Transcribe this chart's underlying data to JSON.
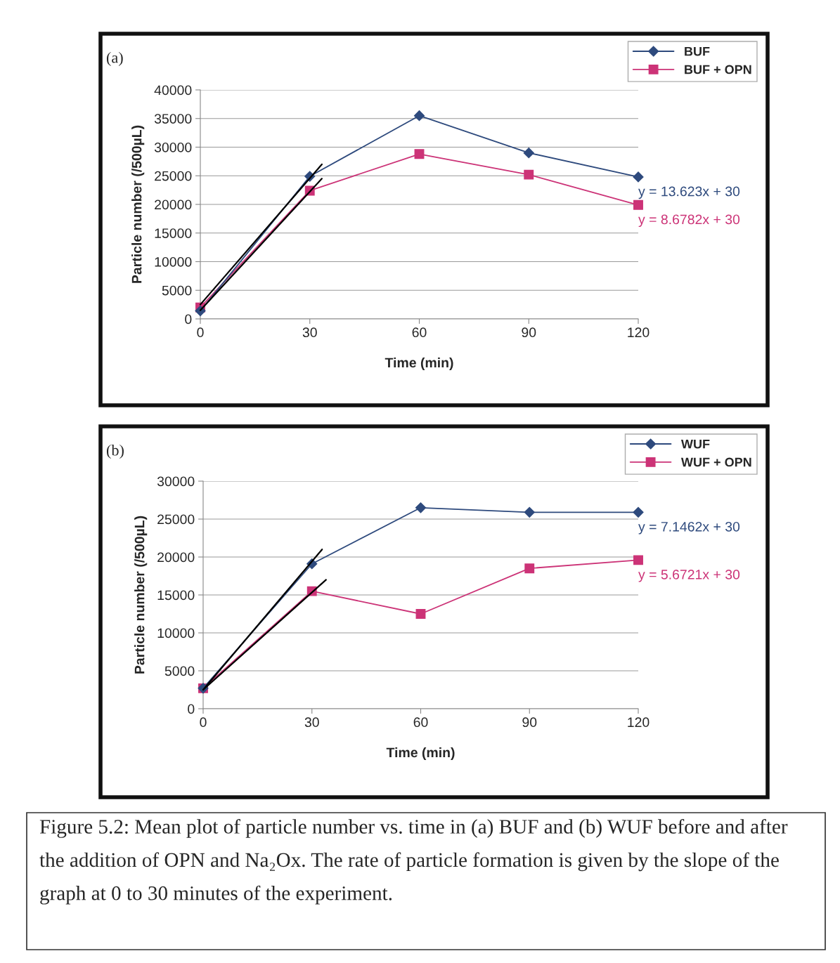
{
  "chart_data": [
    {
      "type": "line",
      "title": "(a)",
      "xlabel": "Time (min)",
      "ylabel": "Particle number (/500µL)",
      "x": [
        0,
        30,
        60,
        90,
        120
      ],
      "xlim": [
        0,
        120
      ],
      "xticks": [
        0,
        30,
        60,
        90,
        120
      ],
      "ylim": [
        0,
        40000
      ],
      "yticks": [
        0,
        5000,
        10000,
        15000,
        20000,
        25000,
        30000,
        35000,
        40000
      ],
      "grid": "y",
      "legend": "top right",
      "series": [
        {
          "name": "BUF",
          "color": "#2e4a7d",
          "marker": "diamond",
          "values": [
            1400,
            24900,
            35500,
            29000,
            24800
          ]
        },
        {
          "name": "BUF + OPN",
          "color": "#cc3377",
          "marker": "square",
          "values": [
            2000,
            22400,
            28800,
            25200,
            19900
          ]
        },
        {
          "type": "line",
          "color": "#000000",
          "marker": "none",
          "x": [
            0,
            33.3
          ],
          "values": [
            2500,
            27000
          ]
        },
        {
          "type": "line",
          "color": "#000000",
          "marker": "none",
          "x": [
            0,
            33.3
          ],
          "values": [
            1500,
            24500
          ]
        }
      ],
      "annotations": [
        "y = 13.623x + 30",
        "y = 8.6782x + 30"
      ]
    },
    {
      "type": "line",
      "title": "(b)",
      "xlabel": "Time (min)",
      "ylabel": "Particle number (/500µL)",
      "x": [
        0,
        30,
        60,
        90,
        120
      ],
      "xlim": [
        0,
        120
      ],
      "xticks": [
        0,
        30,
        60,
        90,
        120
      ],
      "ylim": [
        0,
        30000
      ],
      "yticks": [
        0,
        5000,
        10000,
        15000,
        20000,
        25000,
        30000
      ],
      "grid": "y",
      "legend": "top right",
      "series": [
        {
          "name": "WUF",
          "color": "#2e4a7d",
          "marker": "diamond",
          "values": [
            2700,
            19100,
            26500,
            25900,
            25900
          ]
        },
        {
          "name": "WUF + OPN",
          "color": "#cc3377",
          "marker": "square",
          "values": [
            2700,
            15500,
            12500,
            18500,
            19600
          ]
        },
        {
          "type": "line",
          "color": "#000000",
          "marker": "none",
          "x": [
            0,
            32.8
          ],
          "values": [
            2500,
            21000
          ]
        },
        {
          "type": "line",
          "color": "#000000",
          "marker": "none",
          "x": [
            0,
            33.9
          ],
          "values": [
            2500,
            17000
          ]
        }
      ],
      "annotations": [
        "y = 7.1462x + 30",
        "y = 5.6721x + 30",
        "Figure 5.2: Mean plot of particle number vs. time in (a) BUF and (b) WUF before and after the addition of OPN and Na₂Ox. The rate of particle formation is given by the slope of the graph at 0 to 30 minutes of the experiment."
      ]
    }
  ]
}
